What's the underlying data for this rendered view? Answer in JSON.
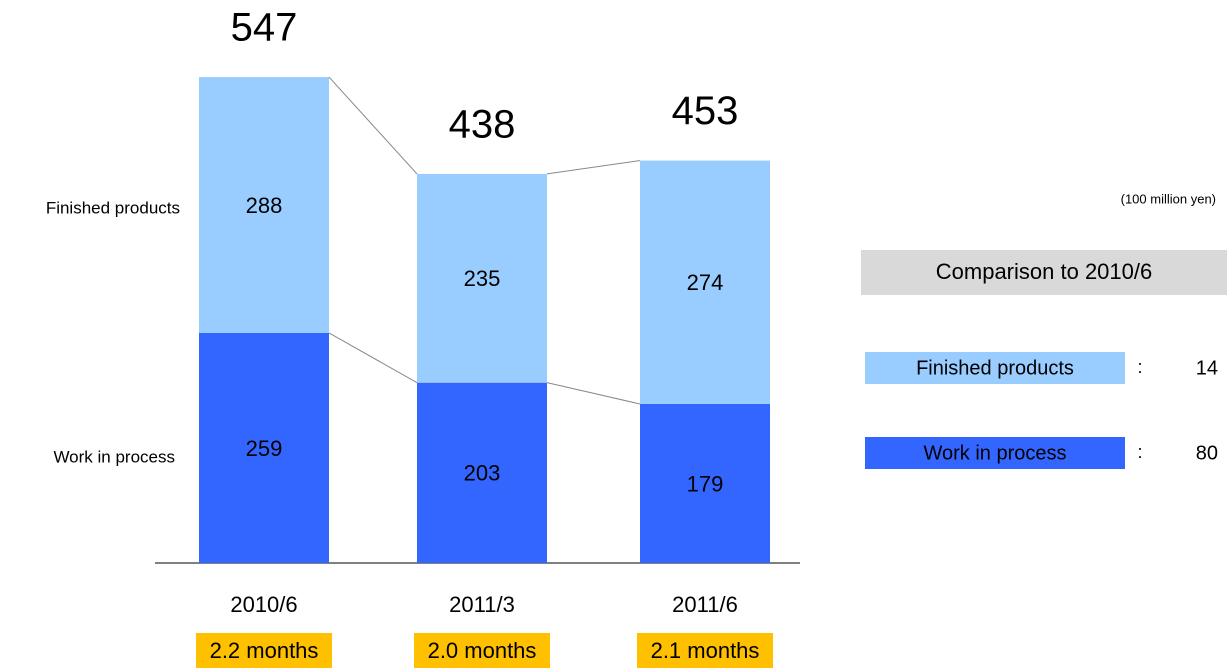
{
  "chart_data": {
    "type": "bar",
    "stacked": true,
    "categories": [
      "2010/6",
      "2011/3",
      "2011/6"
    ],
    "series": [
      {
        "name": "Work in process",
        "color": "#3366ff",
        "values": [
          259,
          203,
          179
        ],
        "comparison": 80
      },
      {
        "name": "Finished products",
        "color": "#99ccff",
        "values": [
          288,
          235,
          274
        ],
        "comparison": 14
      }
    ],
    "totals": [
      547,
      438,
      453
    ],
    "months_labels": [
      "2.2 months",
      "2.0 months",
      "2.1 months"
    ],
    "unit": "(100 million yen)",
    "comparison": {
      "title": "Comparison to 2010/6",
      "separator": ":"
    },
    "ylim": [
      0,
      600
    ]
  }
}
